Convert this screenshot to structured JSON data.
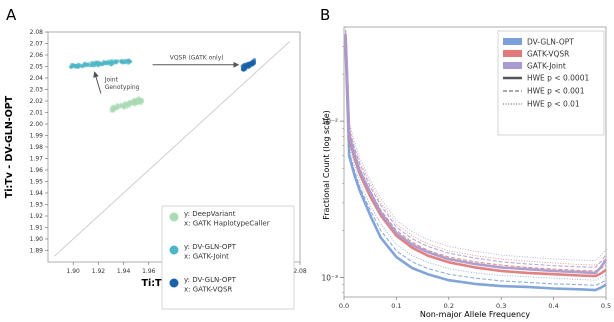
{
  "chart_data": [
    {
      "panel_label": "A",
      "type": "scatter",
      "xlabel": "Ti:Tv - GATK",
      "ylabel": "Ti:Tv - DV-GLN-OPT",
      "xlim": [
        1.88,
        2.08
      ],
      "ylim": [
        1.88,
        2.08
      ],
      "x_ticks": [
        1.9,
        1.92,
        1.94,
        1.96,
        1.98,
        2.0,
        2.02,
        2.04,
        2.06,
        2.08
      ],
      "y_ticks": [
        1.89,
        1.9,
        1.91,
        1.92,
        1.93,
        1.94,
        1.95,
        1.96,
        1.97,
        1.98,
        1.99,
        2.0,
        2.01,
        2.02,
        2.03,
        2.04,
        2.05,
        2.06,
        2.07,
        2.08
      ],
      "x_tick_labels": [
        "1.90",
        "1.92",
        "1.94",
        "1.96",
        "1.98",
        "2.00",
        "2.02",
        "2.04",
        "2.06",
        "2.08"
      ],
      "y_tick_labels": [
        "1.89",
        "1.90",
        "1.91",
        "1.92",
        "1.93",
        "1.94",
        "1.95",
        "1.96",
        "1.97",
        "1.98",
        "1.99",
        "2.00",
        "2.01",
        "2.02",
        "2.03",
        "2.04",
        "2.05",
        "2.06",
        "2.07",
        "2.08"
      ],
      "diagonal": true,
      "grid": false,
      "legend_position": "bottom-right",
      "series": [
        {
          "legend": [
            "y: DeepVariant",
            "x: GATK HaplotypeCaller"
          ],
          "color": "#a9dbb5",
          "clusters": [
            {
              "x_min": 1.93,
              "x_max": 1.955,
              "y_min": 2.01,
              "y_max": 2.024,
              "n": 140
            }
          ]
        },
        {
          "legend": [
            "y: DV-GLN-OPT",
            "x: GATK-Joint"
          ],
          "color": "#4cb6c6",
          "clusters": [
            {
              "x_min": 1.898,
              "x_max": 1.946,
              "y_min": 2.048,
              "y_max": 2.057,
              "n": 160
            }
          ]
        },
        {
          "legend": [
            "y: DV-GLN-OPT",
            "x: GATK-VQSR"
          ],
          "color": "#1b62a8",
          "clusters": [
            {
              "x_min": 2.034,
              "x_max": 2.044,
              "y_min": 2.045,
              "y_max": 2.057,
              "n": 120
            }
          ]
        }
      ],
      "annotations": [
        {
          "text": "VQSR (GATK only)",
          "x": 1.998,
          "y": 2.056,
          "arrow_from": [
            1.963,
            2.0515
          ],
          "arrow_to": [
            2.031,
            2.0515
          ]
        },
        {
          "text": [
            "Joint",
            "Genotyping"
          ],
          "x": 1.925,
          "y": 2.037,
          "arrow_from": [
            1.922,
            2.0265
          ],
          "arrow_to": [
            1.917,
            2.045
          ]
        }
      ]
    },
    {
      "panel_label": "B",
      "type": "line",
      "xlabel": "Non-major Allele Frequency",
      "ylabel": "Fractional Count (log scale)",
      "xlim": [
        0.0,
        0.5
      ],
      "y_scale": "log",
      "ylim": [
        0.00075,
        0.04
      ],
      "x_ticks": [
        0.0,
        0.1,
        0.2,
        0.3,
        0.4,
        0.5
      ],
      "x_tick_labels": [
        "0.0",
        "0.1",
        "0.2",
        "0.3",
        "0.4",
        "0.5"
      ],
      "y_ticks": [
        0.001,
        0.01
      ],
      "y_tick_labels": [
        "10⁻³",
        "10⁻²"
      ],
      "grid": false,
      "legend_position": "top-right",
      "x": [
        0.003,
        0.01,
        0.02,
        0.03,
        0.05,
        0.07,
        0.1,
        0.13,
        0.16,
        0.2,
        0.25,
        0.3,
        0.35,
        0.4,
        0.45,
        0.48,
        0.49,
        0.5
      ],
      "series": [
        {
          "name": "DV-GLN-OPT",
          "color": "#7b9fd6",
          "styles": {
            "HWE p < 0.0001": [
              0.03,
              0.006,
              0.0045,
              0.0036,
              0.0025,
              0.0018,
              0.00135,
              0.00115,
              0.00105,
              0.00096,
              0.00091,
              0.00088,
              0.00087,
              0.00085,
              0.00084,
              0.00083,
              0.00086,
              0.0009
            ],
            "HWE p < 0.001": [
              0.032,
              0.0064,
              0.0048,
              0.0038,
              0.0027,
              0.002,
              0.00148,
              0.00126,
              0.00114,
              0.00105,
              0.00099,
              0.00095,
              0.00093,
              0.00091,
              0.0009,
              0.00089,
              0.00092,
              0.00096
            ],
            "HWE p < 0.01": [
              0.034,
              0.007,
              0.0052,
              0.0041,
              0.0029,
              0.0022,
              0.00162,
              0.00138,
              0.00125,
              0.00114,
              0.00107,
              0.00103,
              0.00101,
              0.00099,
              0.00097,
              0.00096,
              0.001,
              0.00104
            ]
          }
        },
        {
          "name": "GATK-VQSR",
          "color": "#e07a7a",
          "styles": {
            "HWE p < 0.0001": [
              0.034,
              0.0078,
              0.0058,
              0.0046,
              0.0033,
              0.0025,
              0.00185,
              0.00155,
              0.00138,
              0.00125,
              0.00116,
              0.0011,
              0.00107,
              0.00105,
              0.00103,
              0.00102,
              0.00106,
              0.00112
            ],
            "HWE p < 0.001": [
              0.036,
              0.0084,
              0.0063,
              0.005,
              0.0036,
              0.0027,
              0.002,
              0.00168,
              0.00149,
              0.00135,
              0.00126,
              0.0012,
              0.00116,
              0.00113,
              0.00111,
              0.0011,
              0.00114,
              0.0012
            ],
            "HWE p < 0.01": [
              0.038,
              0.0092,
              0.0069,
              0.0055,
              0.004,
              0.003,
              0.0022,
              0.00185,
              0.00164,
              0.00148,
              0.00138,
              0.00131,
              0.00127,
              0.00124,
              0.00121,
              0.0012,
              0.00125,
              0.00131
            ]
          }
        },
        {
          "name": "GATK-Joint",
          "color": "#a99bcf",
          "styles": {
            "HWE p < 0.0001": [
              0.036,
              0.0082,
              0.0061,
              0.0048,
              0.0035,
              0.0026,
              0.00192,
              0.00162,
              0.00145,
              0.00131,
              0.00122,
              0.00116,
              0.00113,
              0.0011,
              0.00108,
              0.00107,
              0.00116,
              0.0013
            ],
            "HWE p < 0.001": [
              0.038,
              0.0089,
              0.0067,
              0.0053,
              0.0038,
              0.0029,
              0.0021,
              0.00177,
              0.00158,
              0.00143,
              0.00133,
              0.00126,
              0.00122,
              0.00119,
              0.00117,
              0.00116,
              0.00126,
              0.0014
            ],
            "HWE p < 0.01": [
              0.04,
              0.0098,
              0.0074,
              0.0058,
              0.0042,
              0.0032,
              0.00232,
              0.00196,
              0.00175,
              0.00158,
              0.00147,
              0.00139,
              0.00135,
              0.00131,
              0.00129,
              0.00128,
              0.00138,
              0.00152
            ]
          }
        }
      ],
      "legend": {
        "series": [
          "DV-GLN-OPT",
          "GATK-VQSR",
          "GATK-Joint"
        ],
        "styles": [
          {
            "label": "HWE p < 0.0001",
            "dash": "solid"
          },
          {
            "label": "HWE p < 0.001",
            "dash": "dashed"
          },
          {
            "label": "HWE p < 0.01",
            "dash": "dotted"
          }
        ]
      }
    }
  ]
}
